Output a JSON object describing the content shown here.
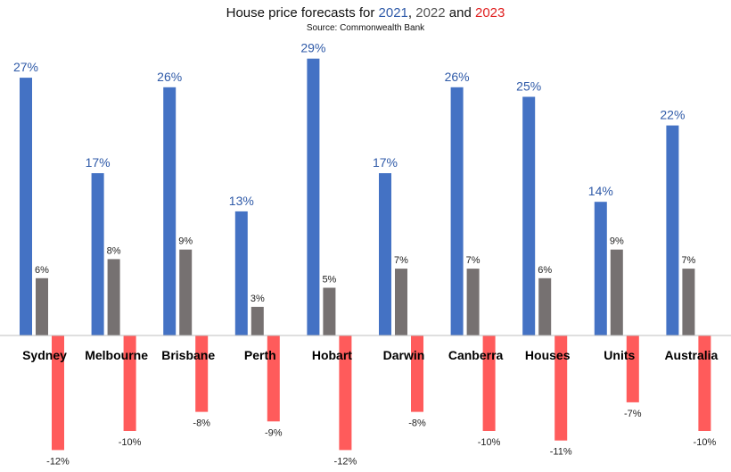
{
  "header": {
    "title_prefix": "House price forecasts for ",
    "year_2021": "2021",
    "sep_1": ", ",
    "year_2022": "2022",
    "sep_2": " and ",
    "year_2023": "2023",
    "subtitle": "Source: Commonwealth Bank"
  },
  "colors": {
    "2021": "#4472c4",
    "2022": "#767171",
    "2023": "#ff5b5b",
    "label_2021": "#2f5aa8"
  },
  "chart_data": {
    "type": "bar",
    "title": "House price forecasts for 2021, 2022 and 2023",
    "subtitle": "Source: Commonwealth Bank",
    "categories": [
      "Sydney",
      "Melbourne",
      "Brisbane",
      "Perth",
      "Hobart",
      "Darwin",
      "Canberra",
      "Houses",
      "Units",
      "Australia"
    ],
    "series": [
      {
        "name": "2021",
        "values": [
          27,
          17,
          26,
          13,
          29,
          17,
          26,
          25,
          14,
          22
        ],
        "labels": [
          "27%",
          "17%",
          "26%",
          "13%",
          "29%",
          "17%",
          "26%",
          "25%",
          "14%",
          "22%"
        ]
      },
      {
        "name": "2022",
        "values": [
          6,
          8,
          9,
          3,
          5,
          7,
          7,
          6,
          9,
          7
        ],
        "labels": [
          "6%",
          "8%",
          "9%",
          "3%",
          "5%",
          "7%",
          "7%",
          "6%",
          "9%",
          "7%"
        ]
      },
      {
        "name": "2023",
        "values": [
          -12,
          -10,
          -8,
          -9,
          -12,
          -8,
          -10,
          -11,
          -7,
          -10
        ],
        "labels": [
          "-12%",
          "-10%",
          "-8%",
          "-9%",
          "-12%",
          "-8%",
          "-10%",
          "-11%",
          "-7%",
          "-10%"
        ]
      }
    ],
    "ylim": [
      -14,
      30
    ],
    "grid": false,
    "legend": "none",
    "xlabel": "",
    "ylabel": ""
  }
}
